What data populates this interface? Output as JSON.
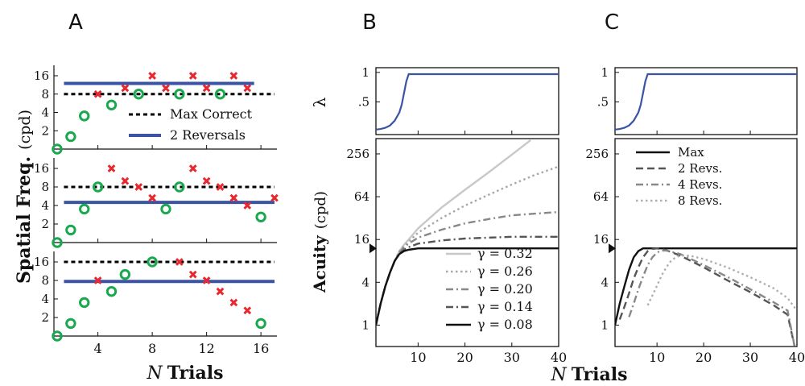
{
  "panel_labels": [
    "A",
    "B",
    "C"
  ],
  "chart_data": [
    {
      "id": "A",
      "type": "scatter",
      "xlabel_var": "N",
      "xlabel": "Trials",
      "ylabel": "Spatial Freq.",
      "ylabel_unit": "(cpd)",
      "xlim": [
        1,
        17
      ],
      "ylim": [
        1,
        16
      ],
      "y_scale": "log2",
      "xticks": [
        4,
        8,
        12,
        16
      ],
      "xtick_labels": [
        "4",
        "8",
        "12",
        "16"
      ],
      "yticks": [
        2,
        4,
        8,
        16
      ],
      "ytick_labels": [
        "2",
        "4",
        "8",
        "16"
      ],
      "legend": {
        "position": "lower-right of top subplot",
        "entries": [
          {
            "label": "Max Correct",
            "style": "dotted",
            "color": "#000000"
          },
          {
            "label": "2 Reversals",
            "style": "solid",
            "color": "#3a53a4"
          }
        ]
      },
      "colors": {
        "correct": "#1aa84f",
        "incorrect": "#e8282e",
        "max_correct": "#000000",
        "reversals": "#3a53a4"
      },
      "subplots": [
        {
          "correct": {
            "x": [
              1,
              2,
              3,
              5,
              7,
              10,
              13
            ],
            "y": [
              1,
              1.6,
              3.5,
              5.3,
              8,
              8,
              8
            ]
          },
          "incorrect": {
            "x": [
              4,
              6,
              8,
              9,
              11,
              12,
              14,
              15
            ],
            "y": [
              8,
              10,
              16,
              10,
              16,
              10,
              16,
              10
            ]
          },
          "max_correct": 8,
          "two_reversals": 12
        },
        {
          "correct": {
            "x": [
              1,
              2,
              3,
              4,
              9,
              10,
              16
            ],
            "y": [
              1,
              1.6,
              3.5,
              8,
              3.5,
              8,
              2.6
            ]
          },
          "incorrect": {
            "x": [
              5,
              6,
              7,
              8,
              11,
              12,
              13,
              14,
              15,
              17
            ],
            "y": [
              16,
              10,
              8,
              5.3,
              16,
              10,
              8,
              5.3,
              4,
              5.3
            ]
          },
          "max_correct": 8,
          "two_reversals": 4.5
        },
        {
          "correct": {
            "x": [
              1,
              2,
              3,
              5,
              6,
              8,
              16
            ],
            "y": [
              1,
              1.6,
              3.5,
              5.3,
              10,
              16,
              1.6
            ]
          },
          "incorrect": {
            "x": [
              4,
              10,
              11,
              12,
              13,
              14,
              15
            ],
            "y": [
              8,
              16,
              10,
              8,
              5.3,
              3.5,
              2.6
            ]
          },
          "max_correct": 16,
          "two_reversals": 7.7
        }
      ]
    },
    {
      "id": "B",
      "type": "line",
      "xlabel": "",
      "lambda_label": "λ",
      "ylabel": "Acuity",
      "ylabel_unit": "(cpd)",
      "xlim": [
        1,
        40
      ],
      "xticks": [
        10,
        20,
        30,
        40
      ],
      "xtick_labels": [
        "10",
        "20",
        "30",
        "40"
      ],
      "lambda_ylim": [
        0,
        1
      ],
      "lambda_yticks": [
        0.5,
        1
      ],
      "lambda_ytick_labels": [
        ".5",
        "1"
      ],
      "lambda_curve": {
        "x": [
          1,
          2,
          3,
          4,
          5,
          6,
          6.5,
          7,
          7.5,
          8,
          9,
          10,
          20,
          30,
          40
        ],
        "y": [
          0.03,
          0.04,
          0.06,
          0.1,
          0.18,
          0.32,
          0.45,
          0.65,
          0.85,
          0.97,
          0.97,
          0.97,
          0.97,
          0.97,
          0.97
        ],
        "color": "#3a53a4"
      },
      "acuity_ylim": [
        0.5,
        420
      ],
      "y_scale": "log2",
      "acuity_yticks": [
        1,
        4,
        16,
        64,
        256
      ],
      "acuity_ytick_labels": [
        "1",
        "4",
        "16",
        "64",
        "256"
      ],
      "marker_y": 12,
      "legend": {
        "position": "bottom-right"
      },
      "series": [
        {
          "name": "γ = 0.32",
          "style": "solid",
          "color": "#c8c8c8",
          "x": [
            1,
            2,
            3,
            4,
            5,
            6,
            7,
            8,
            10,
            15,
            20,
            25,
            30,
            34
          ],
          "y": [
            1,
            2,
            3.5,
            5.5,
            8,
            11,
            13.5,
            16,
            23,
            45,
            80,
            140,
            250,
            400
          ]
        },
        {
          "name": "γ = 0.26",
          "style": "dotted",
          "color": "#a8a8a8",
          "x": [
            1,
            2,
            3,
            4,
            5,
            6,
            7,
            8,
            10,
            15,
            20,
            25,
            30,
            35,
            40
          ],
          "y": [
            1,
            2,
            3.5,
            5.5,
            8,
            11,
            13,
            15,
            20,
            32,
            48,
            68,
            95,
            130,
            170
          ]
        },
        {
          "name": "γ = 0.20",
          "style": "dashdot",
          "color": "#888888",
          "x": [
            1,
            2,
            3,
            4,
            5,
            6,
            7,
            8,
            10,
            15,
            20,
            25,
            30,
            35,
            40
          ],
          "y": [
            1,
            2,
            3.5,
            5.5,
            8,
            10.5,
            12.5,
            14,
            17,
            22,
            27,
            31,
            35,
            37,
            39
          ]
        },
        {
          "name": "γ = 0.14",
          "style": "dashdot",
          "color": "#555555",
          "x": [
            1,
            2,
            3,
            4,
            5,
            6,
            7,
            8,
            10,
            15,
            20,
            25,
            30,
            35,
            40
          ],
          "y": [
            1,
            2,
            3.5,
            5.5,
            8,
            10,
            11.5,
            12.5,
            14,
            15.5,
            16.5,
            17,
            17.5,
            17.5,
            17.5
          ]
        },
        {
          "name": "γ = 0.08",
          "style": "solid",
          "color": "#111111",
          "x": [
            1,
            2,
            3,
            4,
            5,
            6,
            7,
            8,
            10,
            15,
            20,
            30,
            40
          ],
          "y": [
            1,
            2,
            3.5,
            5.5,
            8,
            10,
            11,
            11.5,
            12,
            12,
            12,
            12,
            12
          ]
        }
      ]
    },
    {
      "id": "C",
      "type": "line",
      "xlabel": "",
      "xlim": [
        1,
        40
      ],
      "xticks": [
        10,
        20,
        30,
        40
      ],
      "xtick_labels": [
        "10",
        "20",
        "30",
        "40"
      ],
      "lambda_ylim": [
        0,
        1
      ],
      "lambda_yticks": [
        0.5,
        1
      ],
      "lambda_ytick_labels": [
        ".5",
        "1"
      ],
      "lambda_curve": {
        "x": [
          1,
          2,
          3,
          4,
          5,
          6,
          6.5,
          7,
          7.5,
          8,
          9,
          10,
          20,
          30,
          40
        ],
        "y": [
          0.03,
          0.04,
          0.06,
          0.1,
          0.18,
          0.32,
          0.45,
          0.65,
          0.85,
          0.97,
          0.97,
          0.97,
          0.97,
          0.97,
          0.97
        ],
        "color": "#3a53a4"
      },
      "acuity_ylim": [
        0.5,
        420
      ],
      "y_scale": "log2",
      "acuity_yticks": [
        1,
        4,
        16,
        64,
        256
      ],
      "acuity_ytick_labels": [
        "1",
        "4",
        "16",
        "64",
        "256"
      ],
      "marker_y": 12,
      "legend": {
        "position": "top-left"
      },
      "series": [
        {
          "name": "Max",
          "style": "solid",
          "color": "#111111",
          "x": [
            1,
            2,
            3,
            4,
            5,
            6,
            7,
            8,
            9,
            10,
            15,
            20,
            30,
            40
          ],
          "y": [
            1,
            2,
            3.5,
            6,
            9,
            11,
            12,
            12,
            12,
            12,
            12,
            12,
            12,
            12
          ]
        },
        {
          "name": "2 Revs.",
          "style": "dashed",
          "color": "#555555",
          "x": [
            2,
            3,
            4,
            5,
            6,
            7,
            8,
            9,
            10,
            12,
            15,
            20,
            25,
            30,
            35,
            38,
            39.5
          ],
          "y": [
            1.2,
            1.8,
            2.8,
            4.5,
            6.5,
            9,
            11,
            11.8,
            12,
            11.3,
            9.5,
            6.5,
            4.3,
            2.9,
            1.9,
            1.4,
            0.5
          ]
        },
        {
          "name": "4 Revs.",
          "style": "dashdot",
          "color": "#888888",
          "x": [
            4,
            5,
            6,
            7,
            8,
            9,
            10,
            11,
            12,
            15,
            20,
            25,
            30,
            35,
            38,
            39.5
          ],
          "y": [
            1.3,
            2,
            3.2,
            4.8,
            7,
            9,
            10.5,
            11.2,
            11.2,
            10,
            7,
            4.8,
            3.2,
            2.1,
            1.6,
            0.5
          ]
        },
        {
          "name": "8 Revs.",
          "style": "dotted",
          "color": "#b0b0b0",
          "x": [
            8,
            9,
            10,
            11,
            12,
            13,
            14,
            15,
            17,
            20,
            25,
            30,
            35,
            38,
            40
          ],
          "y": [
            1.9,
            2.6,
            3.6,
            5,
            6.5,
            8,
            9,
            9.5,
            9.5,
            8.5,
            6.5,
            4.7,
            3.3,
            2.4,
            1.6
          ]
        }
      ]
    }
  ],
  "shared_xlabel_var": "N",
  "shared_xlabel": "Trials"
}
